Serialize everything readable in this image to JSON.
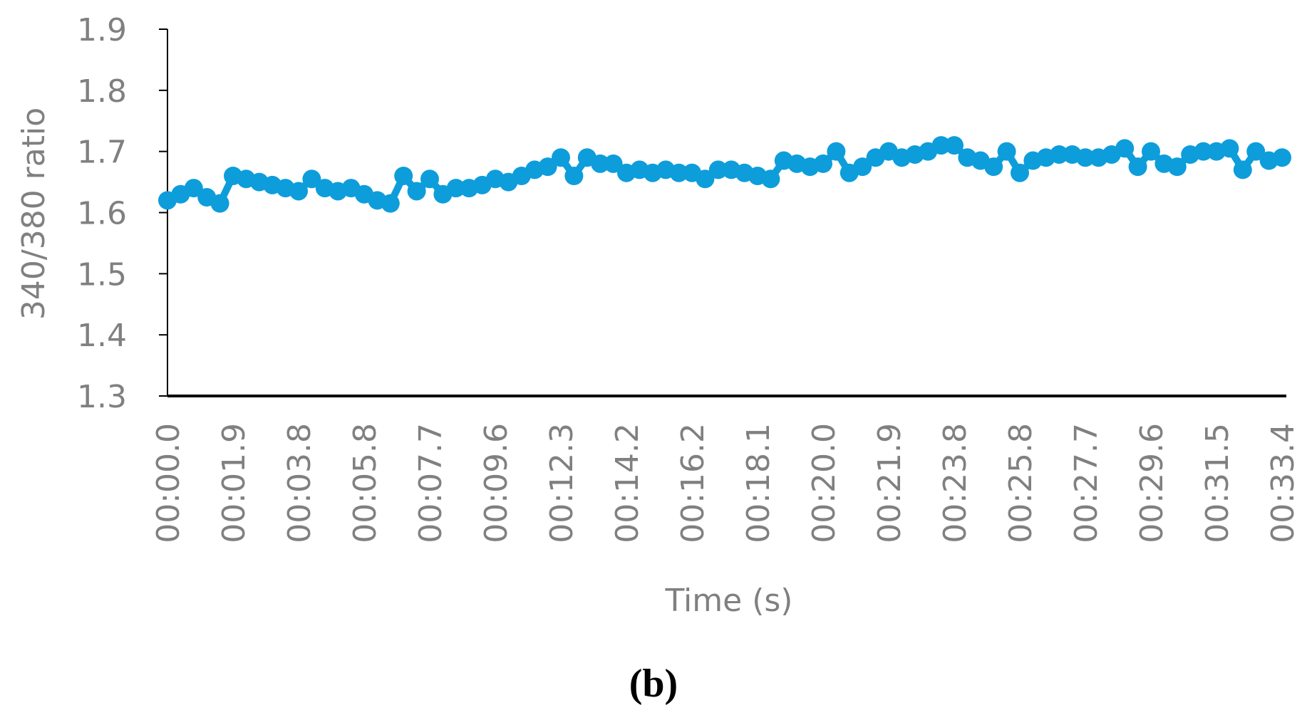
{
  "chart_data": {
    "type": "line",
    "title": "(b)",
    "x_label": "Time (s)",
    "y_label": "340/380 ratio",
    "categories": [
      "00:00.0",
      null,
      null,
      null,
      null,
      "00:01.9",
      null,
      null,
      null,
      null,
      "00:03.8",
      null,
      null,
      null,
      null,
      "00:05.8",
      null,
      null,
      null,
      null,
      "00:07.7",
      null,
      null,
      null,
      null,
      "00:09.6",
      null,
      null,
      null,
      null,
      "00:12.3",
      null,
      null,
      null,
      null,
      "00:14.2",
      null,
      null,
      null,
      null,
      "00:16.2",
      null,
      null,
      null,
      null,
      "00:18.1",
      null,
      null,
      null,
      null,
      "00:20.0",
      null,
      null,
      null,
      null,
      "00:21.9",
      null,
      null,
      null,
      null,
      "00:23.8",
      null,
      null,
      null,
      null,
      "00:25.8",
      null,
      null,
      null,
      null,
      "00:27.7",
      null,
      null,
      null,
      null,
      "00:29.6",
      null,
      null,
      null,
      null,
      "00:31.5",
      null,
      null,
      null,
      null,
      "00:33.4"
    ],
    "series": [
      {
        "color": "#0d9ddb",
        "values": [
          1.62,
          1.63,
          1.64,
          1.625,
          1.615,
          1.66,
          1.655,
          1.65,
          1.645,
          1.64,
          1.635,
          1.655,
          1.64,
          1.635,
          1.64,
          1.63,
          1.62,
          1.615,
          1.66,
          1.635,
          1.655,
          1.63,
          1.64,
          1.64,
          1.645,
          1.655,
          1.65,
          1.66,
          1.67,
          1.675,
          1.69,
          1.66,
          1.69,
          1.68,
          1.68,
          1.665,
          1.67,
          1.665,
          1.67,
          1.665,
          1.665,
          1.655,
          1.67,
          1.67,
          1.665,
          1.66,
          1.655,
          1.685,
          1.68,
          1.675,
          1.68,
          1.7,
          1.665,
          1.675,
          1.69,
          1.7,
          1.69,
          1.695,
          1.7,
          1.71,
          1.71,
          1.69,
          1.685,
          1.675,
          1.7,
          1.665,
          1.685,
          1.69,
          1.695,
          1.695,
          1.69,
          1.69,
          1.695,
          1.705,
          1.675,
          1.7,
          1.68,
          1.675,
          1.695,
          1.7,
          1.7,
          1.705,
          1.67,
          1.7,
          1.685,
          1.69
        ]
      }
    ],
    "ylim": [
      1.3,
      1.9
    ],
    "yticks": [
      1.3,
      1.4,
      1.5,
      1.6,
      1.7,
      1.8,
      1.9
    ],
    "grid": false
  }
}
